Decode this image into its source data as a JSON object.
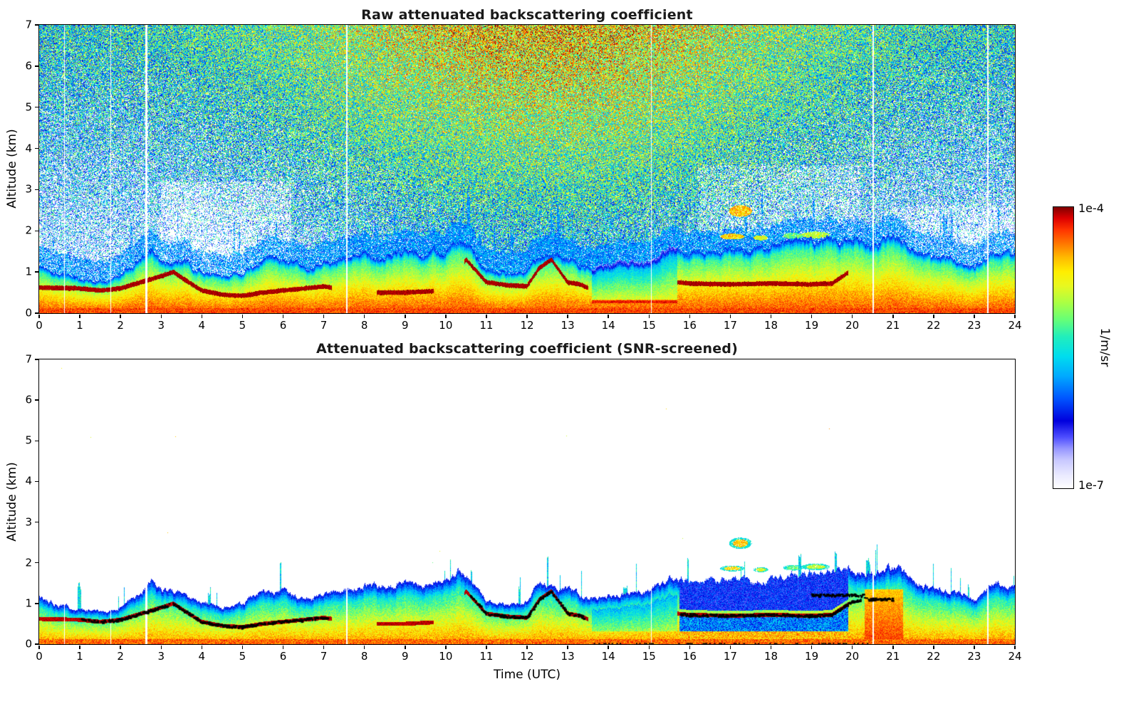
{
  "axes": {
    "xlim": [
      0,
      24
    ],
    "ylim": [
      0,
      7
    ],
    "x_ticks": [
      0,
      1,
      2,
      3,
      4,
      5,
      6,
      7,
      8,
      9,
      10,
      11,
      12,
      13,
      14,
      15,
      16,
      17,
      18,
      19,
      20,
      21,
      22,
      23,
      24
    ],
    "y_ticks": [
      0,
      1,
      2,
      3,
      4,
      5,
      6,
      7
    ]
  },
  "colorbar": {
    "units_label": "1/m/sr",
    "max_label": "1e-4",
    "min_label": "1e-7",
    "scale": "log"
  },
  "colors": {
    "axis": "#000000",
    "background": "#ffffff",
    "colormap_stops": [
      [
        0.0,
        "#ffffff"
      ],
      [
        0.05,
        "#e8e8ff"
      ],
      [
        0.1,
        "#c8c8ff"
      ],
      [
        0.14,
        "#9898ff"
      ],
      [
        0.18,
        "#5050ff"
      ],
      [
        0.24,
        "#0000dd"
      ],
      [
        0.32,
        "#0055ff"
      ],
      [
        0.4,
        "#00aaff"
      ],
      [
        0.47,
        "#00ddee"
      ],
      [
        0.54,
        "#22eebb"
      ],
      [
        0.6,
        "#66ff77"
      ],
      [
        0.66,
        "#aaff44"
      ],
      [
        0.72,
        "#e8f820"
      ],
      [
        0.77,
        "#ffee00"
      ],
      [
        0.82,
        "#ffbb00"
      ],
      [
        0.87,
        "#ff7700"
      ],
      [
        0.92,
        "#ff3300"
      ],
      [
        0.96,
        "#dd0000"
      ],
      [
        1.0,
        "#800000"
      ]
    ]
  },
  "chart_data": [
    {
      "type": "heatmap",
      "title": "Raw attenuated backscattering coefficient",
      "xlabel": "",
      "ylabel": "Altitude (km)",
      "xlim": [
        0,
        24
      ],
      "ylim": [
        0,
        7
      ],
      "x_units": "Time (UTC, hours)",
      "y_units": "km",
      "value_units": "1/m/sr",
      "value_range": [
        "1e-7",
        "1e-4"
      ],
      "content": "Ceilometer raw attenuated backscatter: dense multicolor speckle noise fills the panel above the boundary layer; solar background noise is strongest (orange/red speckle) at high altitude around midday; a continuous strong aerosol boundary layer (red/dark-red, near 1e-4) lies below roughly 1-1.9 km for the whole day, with data gaps as thin white vertical lines."
    },
    {
      "type": "heatmap",
      "title": "Attenuated backscattering coefficient (SNR-screened)",
      "xlabel": "Time (UTC)",
      "ylabel": "Altitude (km)",
      "xlim": [
        0,
        24
      ],
      "ylim": [
        0,
        7
      ],
      "x_units": "Time (UTC, hours)",
      "y_units": "km",
      "value_units": "1/m/sr",
      "value_range": [
        "1e-7",
        "1e-4"
      ],
      "content": "Same scene with low signal-to-noise pixels removed (white above the boundary layer). Black marks trace the strong aerosol gradient near 0.4-1.2 km; a deep-blue low-signal pocket appears 16-20 UTC between ~0.8 and 1.6 km; elevated aerosol patches occur at 1.6-2.6 km between 17 and 20 UTC; a strong red plume near 20.5 UTC reaches ~1.3 km."
    }
  ],
  "scene_model": {
    "gaps": [
      {
        "t": 0.62,
        "w": 0.03
      },
      {
        "t": 1.76,
        "w": 0.02
      },
      {
        "t": 2.63,
        "w": 0.05
      },
      {
        "t": 7.57,
        "w": 0.03
      },
      {
        "t": 15.05,
        "w": 0.02
      },
      {
        "t": 20.52,
        "w": 0.03
      },
      {
        "t": 23.33,
        "w": 0.03
      }
    ],
    "boundary_layer_top_km": [
      [
        0,
        1.15
      ],
      [
        0.5,
        1.0
      ],
      [
        1,
        0.85
      ],
      [
        1.5,
        0.8
      ],
      [
        2,
        0.9
      ],
      [
        2.5,
        1.3
      ],
      [
        2.8,
        1.55
      ],
      [
        3,
        1.3
      ],
      [
        3.5,
        1.25
      ],
      [
        4,
        1.05
      ],
      [
        4.5,
        0.9
      ],
      [
        5,
        1.0
      ],
      [
        5.5,
        1.35
      ],
      [
        6,
        1.3
      ],
      [
        6.5,
        1.1
      ],
      [
        7,
        1.2
      ],
      [
        7.5,
        1.3
      ],
      [
        8,
        1.45
      ],
      [
        8.5,
        1.4
      ],
      [
        9,
        1.55
      ],
      [
        9.5,
        1.45
      ],
      [
        10,
        1.5
      ],
      [
        10.3,
        1.75
      ],
      [
        10.6,
        1.6
      ],
      [
        11,
        1.05
      ],
      [
        11.5,
        1.0
      ],
      [
        12,
        1.05
      ],
      [
        12.3,
        1.5
      ],
      [
        12.6,
        1.45
      ],
      [
        13,
        1.35
      ],
      [
        13.5,
        1.1
      ],
      [
        14,
        1.2
      ],
      [
        14.5,
        1.25
      ],
      [
        15,
        1.3
      ],
      [
        15.5,
        1.6
      ],
      [
        16,
        1.5
      ],
      [
        16.5,
        1.55
      ],
      [
        17,
        1.6
      ],
      [
        17.5,
        1.55
      ],
      [
        18,
        1.6
      ],
      [
        18.5,
        1.7
      ],
      [
        19,
        1.75
      ],
      [
        19.5,
        1.8
      ],
      [
        20,
        1.85
      ],
      [
        20.5,
        1.75
      ],
      [
        21,
        1.9
      ],
      [
        21.5,
        1.6
      ],
      [
        22,
        1.35
      ],
      [
        22.5,
        1.3
      ],
      [
        23,
        1.1
      ],
      [
        23.3,
        1.3
      ],
      [
        23.6,
        1.5
      ],
      [
        24,
        1.5
      ]
    ],
    "aerosol_core_km": [
      [
        0,
        0.62
      ],
      [
        1,
        0.6
      ],
      [
        1.5,
        0.55
      ],
      [
        2,
        0.6
      ],
      [
        2.5,
        0.75
      ],
      [
        3,
        0.9
      ],
      [
        3.3,
        1.0
      ],
      [
        3.6,
        0.8
      ],
      [
        4,
        0.55
      ],
      [
        4.5,
        0.45
      ],
      [
        5,
        0.42
      ],
      [
        5.5,
        0.5
      ],
      [
        6,
        0.55
      ],
      [
        6.5,
        0.6
      ],
      [
        7,
        0.65
      ],
      [
        8,
        0.5
      ],
      [
        9,
        0.5
      ],
      [
        10,
        0.55
      ],
      [
        10.5,
        1.3
      ],
      [
        11,
        0.75
      ],
      [
        11.5,
        0.68
      ],
      [
        12,
        0.65
      ],
      [
        12.3,
        1.1
      ],
      [
        12.6,
        1.3
      ],
      [
        13,
        0.75
      ],
      [
        13.3,
        0.7
      ],
      [
        14,
        0.4
      ],
      [
        15,
        0.35
      ],
      [
        15.7,
        0.75
      ],
      [
        16,
        0.72
      ],
      [
        17,
        0.7
      ],
      [
        18,
        0.72
      ],
      [
        19,
        0.7
      ],
      [
        19.5,
        0.72
      ],
      [
        20,
        1.05
      ],
      [
        20.5,
        1.15
      ],
      [
        21,
        0.9
      ],
      [
        22,
        0.5
      ],
      [
        23,
        0.45
      ],
      [
        24,
        0.5
      ]
    ],
    "strong_core_intervals": [
      [
        0,
        7.2
      ],
      [
        8.3,
        9.7
      ],
      [
        10.45,
        13.5
      ],
      [
        15.7,
        19.9
      ]
    ],
    "screened_black_marks": [
      {
        "t0": 1.05,
        "t1": 2.5
      },
      {
        "t0": 2.55,
        "t1": 3.2
      },
      {
        "t0": 3.3,
        "t1": 7.1
      },
      {
        "t0": 10.6,
        "t1": 13.4
      },
      {
        "t0": 15.75,
        "t1": 20.35
      },
      {
        "t0": 19.0,
        "t1": 20.3,
        "z": 1.2
      },
      {
        "t0": 20.4,
        "t1": 21.0,
        "z": 1.1
      }
    ],
    "elevated_layers": [
      {
        "t": 17.25,
        "z": 2.48,
        "rt": 0.28,
        "rz": 0.14,
        "s": 0.8
      },
      {
        "t": 17.05,
        "z": 1.86,
        "rt": 0.3,
        "rz": 0.07,
        "s": 0.78
      },
      {
        "t": 17.75,
        "z": 1.83,
        "rt": 0.18,
        "rz": 0.06,
        "s": 0.72
      },
      {
        "t": 18.55,
        "z": 1.88,
        "rt": 0.25,
        "rz": 0.07,
        "s": 0.6
      },
      {
        "t": 19.1,
        "z": 1.9,
        "rt": 0.35,
        "rz": 0.08,
        "s": 0.68
      },
      {
        "t": 19.55,
        "z": 1.62,
        "rt": 0.12,
        "rz": 0.06,
        "s": 0.55
      }
    ],
    "blue_pocket_interval": [
      15.75,
      19.9
    ],
    "red_blob": {
      "t0": 20.3,
      "t1": 21.25,
      "zmax": 1.35
    },
    "noise": {
      "solar_center_utc": 12.5,
      "solar_width_h": 6.5
    }
  }
}
